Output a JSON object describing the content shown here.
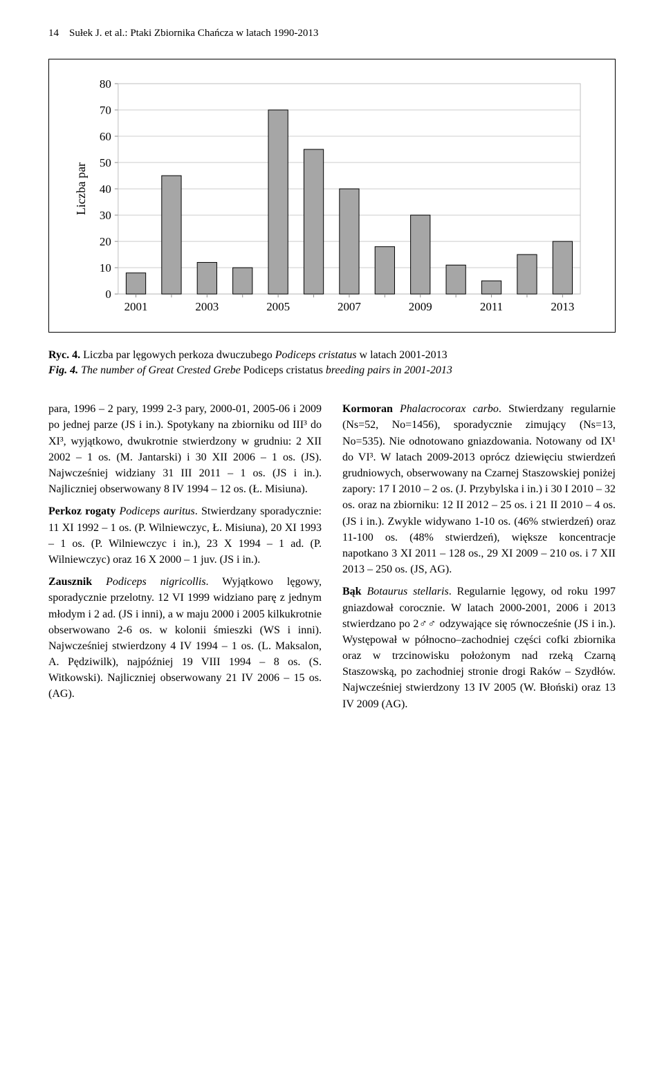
{
  "header": {
    "page_number": "14",
    "running_head": "Sułek J. et al.: Ptaki Zbiornika Chańcza w latach 1990-2013"
  },
  "chart": {
    "type": "bar",
    "ylabel": "Liczba par",
    "categories": [
      "2001",
      "2003",
      "2005",
      "2007",
      "2009",
      "2011",
      "2013"
    ],
    "values": [
      8,
      45,
      12,
      10,
      70,
      55,
      40,
      18,
      30,
      11,
      5,
      15,
      20
    ],
    "bar_color": "#a6a6a6",
    "bar_border": "#000000",
    "grid_color": "#cccccc",
    "bg_color": "#ffffff",
    "ylim": [
      0,
      80
    ],
    "ytick_step": 10,
    "xtick_labels": [
      "2001",
      "2003",
      "2005",
      "2007",
      "2009",
      "2011",
      "2013"
    ],
    "xtick_every": 2,
    "bar_count": 13,
    "bar_width": 0.55,
    "tick_fontsize": 17,
    "label_fontsize": 18
  },
  "caption": {
    "line1_label": "Ryc. 4.",
    "line1_text_a": " Liczba par lęgowych perkoza dwuczubego ",
    "line1_latin": "Podiceps cristatus",
    "line1_text_b": " w latach 2001-2013",
    "line2_label": "Fig. 4.",
    "line2_text_a": " The number of Great Crested Grebe ",
    "line2_latin": "Podiceps cristatus",
    "line2_text_b": " breeding pairs in 2001-2013"
  },
  "left_col": {
    "p1": "para, 1996 – 2 pary, 1999 2-3 pary, 2000-01, 2005-06 i 2009 po jednej parze (JS i in.). Spotykany na zbiorniku od III³ do XI³, wyjątkowo, dwukrotnie stwierdzony w grudniu: 2 XII 2002 – 1 os. (M. Jantarski) i 30 XII 2006 – 1 os. (JS). Najwcześniej widziany 31 III 2011 – 1 os. (JS i in.). Najliczniej obserwowany 8 IV 1994 – 12 os. (Ł. Misiuna).",
    "p2_lead": "Perkoz rogaty",
    "p2_latin": " Podiceps auritus",
    "p2_rest": ". Stwierdzany sporadycznie: 11 XI 1992 – 1 os. (P. Wilniewczyc, Ł. Misiuna), 20 XI 1993 – 1 os. (P. Wilniewczyc i in.), 23 X 1994 – 1 ad. (P. Wilniewczyc) oraz 16 X 2000 – 1 juv. (JS i in.).",
    "p3_lead": "Zausznik",
    "p3_latin": " Podiceps nigricollis",
    "p3_rest": ". Wyjątkowo lęgowy, sporadycznie przelotny. 12 VI 1999 widziano parę z jednym młodym i 2 ad. (JS i inni), a w maju 2000 i 2005 kilkukrotnie obserwowano 2-6 os. w kolonii śmieszki (WS i inni). Najwcześniej stwierdzony 4 IV 1994 – 1 os. (L. Maksalon, A. Pędziwilk), najpóźniej 19 VIII 1994 – 8 os. (S. Witkowski). Najliczniej obserwowany 21 IV 2006 – 15 os. (AG)."
  },
  "right_col": {
    "p1_lead": "Kormoran",
    "p1_latin": " Phalacrocorax carbo",
    "p1_rest": ". Stwierdzany regularnie (Ns=52, No=1456), sporadycznie zimujący (Ns=13, No=535). Nie odnotowano gniazdowania. Notowany od IX¹ do VI³. W latach 2009-2013 oprócz dziewięciu stwierdzeń grudniowych, obserwowany na Czarnej Staszowskiej poniżej zapory: 17 I 2010 – 2 os. (J. Przybylska i in.) i 30 I 2010 – 32 os. oraz na zbiorniku: 12 II 2012 – 25 os. i 21 II 2010 – 4 os. (JS i in.). Zwykle widywano 1-10 os. (46% stwierdzeń) oraz 11-100 os. (48% stwierdzeń), większe koncentracje napotkano 3 XI 2011 – 128 os., 29 XI 2009 – 210 os. i 7 XII 2013 – 250 os. (JS, AG).",
    "p2_lead": "Bąk",
    "p2_latin": " Botaurus stellaris",
    "p2_rest": ". Regularnie lęgowy, od roku 1997 gniazdował corocznie. W latach 2000-2001, 2006 i 2013 stwierdzano po 2♂♂ odzywające się równocześnie (JS i in.). Występował w północno–zachodniej części cofki zbiornika oraz w trzcinowisku położonym nad rzeką Czarną Staszowską, po zachodniej stronie drogi Raków – Szydłów. Najwcześniej stwierdzony 13 IV 2005 (W. Błoński) oraz 13 IV 2009 (AG)."
  }
}
